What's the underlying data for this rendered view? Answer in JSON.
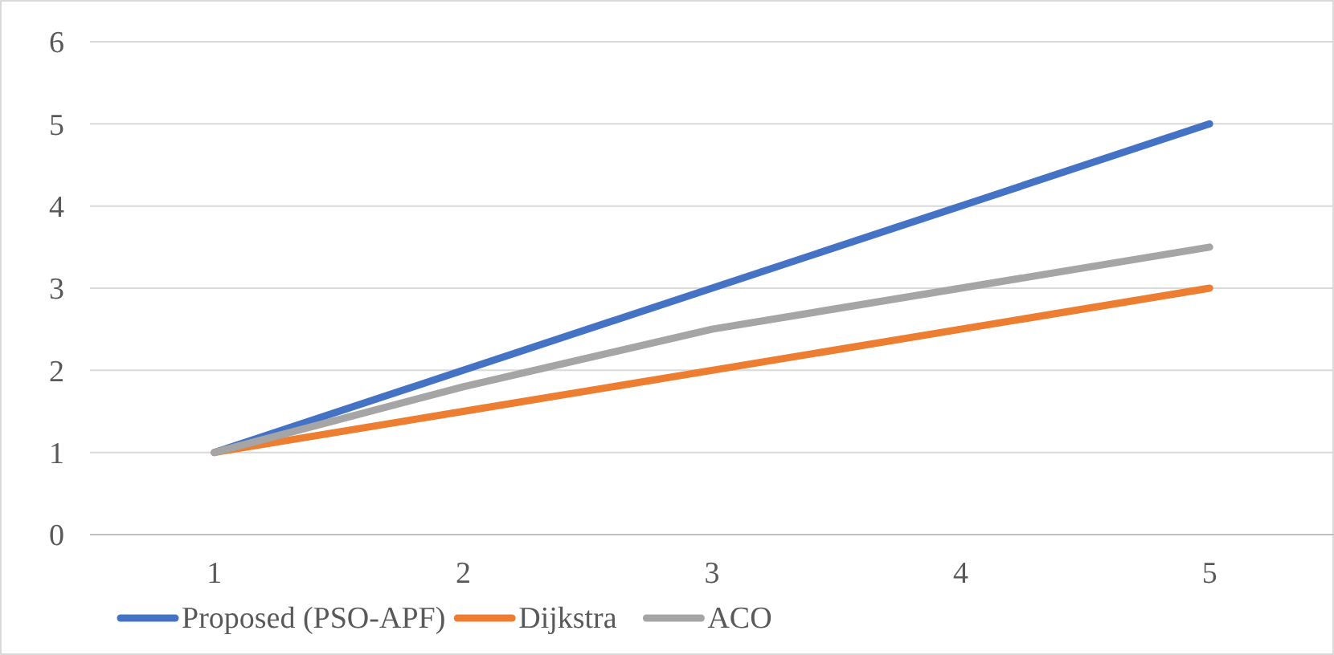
{
  "chart_data": {
    "type": "line",
    "categories": [
      "1",
      "2",
      "3",
      "4",
      "5"
    ],
    "series": [
      {
        "name": "Proposed (PSO-APF)",
        "color": "#4472c4",
        "values": [
          1,
          2,
          3,
          4,
          5
        ]
      },
      {
        "name": "Dijkstra",
        "color": "#ed7d31",
        "values": [
          1,
          1.5,
          2,
          2.5,
          3
        ]
      },
      {
        "name": "ACO",
        "color": "#a5a5a5",
        "values": [
          1,
          1.8,
          2.5,
          3,
          3.5
        ]
      }
    ],
    "ylim": [
      0,
      6
    ],
    "yticks": [
      0,
      1,
      2,
      3,
      4,
      5,
      6
    ],
    "grid": "y",
    "legend": "bottom",
    "marker": "none",
    "line_style": "solid"
  }
}
